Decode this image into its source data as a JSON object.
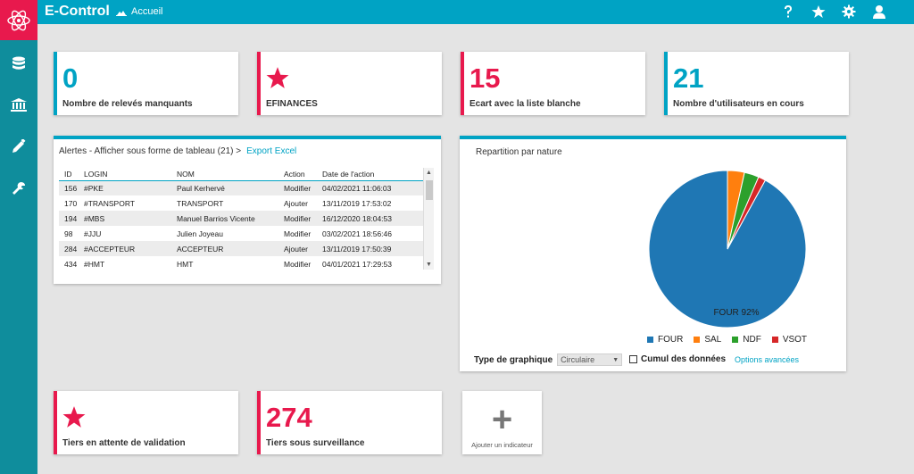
{
  "app": {
    "title": "E-Control",
    "breadcrumb": "Accueil"
  },
  "colors": {
    "accent": "#00a3c4",
    "brand": "#e8194d",
    "sidebar": "#0f8d9c"
  },
  "topbar": {
    "icons": [
      "help-icon",
      "star-icon",
      "gear-icon",
      "user-icon"
    ]
  },
  "sidebar": {
    "items": [
      {
        "icon": "database-icon"
      },
      {
        "icon": "bank-icon"
      },
      {
        "icon": "pencil-icon"
      },
      {
        "icon": "wrench-icon"
      }
    ]
  },
  "kpis": {
    "missing": {
      "value": "0",
      "label": "Nombre de relevés manquants"
    },
    "efinances": {
      "label": "EFINANCES"
    },
    "whitelist": {
      "value": "15",
      "label": "Ecart avec la liste blanche"
    },
    "users": {
      "value": "21",
      "label": "Nombre d'utilisateurs en cours"
    },
    "pending": {
      "label": "Tiers en attente de validation"
    },
    "watch": {
      "value": "274",
      "label": "Tiers sous surveillance"
    },
    "add": {
      "label": "Ajouter un indicateur"
    }
  },
  "alerts": {
    "title": "Alertes - Afficher sous forme de tableau (21) >",
    "export": "Export Excel",
    "columns": [
      "ID",
      "LOGIN",
      "NOM",
      "Action",
      "Date de l'action"
    ],
    "rows": [
      [
        "156",
        "#PKE",
        "Paul Kerhervé",
        "Modifier",
        "04/02/2021 11:06:03"
      ],
      [
        "170",
        "#TRANSPORT",
        "TRANSPORT",
        "Ajouter",
        "13/11/2019 17:53:02"
      ],
      [
        "194",
        "#MBS",
        "Manuel Barrios Vicente",
        "Modifier",
        "16/12/2020 18:04:53"
      ],
      [
        "98",
        "#JJU",
        "Julien Joyeau",
        "Modifier",
        "03/02/2021 18:56:46"
      ],
      [
        "284",
        "#ACCEPTEUR",
        "ACCEPTEUR",
        "Ajouter",
        "13/11/2019 17:50:39"
      ],
      [
        "434",
        "#HMT",
        "HMT",
        "Modifier",
        "04/01/2021 17:29:53"
      ]
    ]
  },
  "repartition": {
    "title": "Repartition par nature",
    "slice_label": "FOUR 92%",
    "type_label": "Type de graphique",
    "type_value": "Circulaire",
    "cumul_label": "Cumul des données",
    "options_label": "Options avancées"
  },
  "chart_data": {
    "type": "pie",
    "title": "Repartition par nature",
    "categories": [
      "FOUR",
      "SAL",
      "NDF",
      "VSOT"
    ],
    "values": [
      92,
      3.5,
      3,
      1.5
    ],
    "colors": [
      "#1f77b4",
      "#ff7f0e",
      "#2ca02c",
      "#d62728"
    ],
    "legend": "bottom"
  }
}
